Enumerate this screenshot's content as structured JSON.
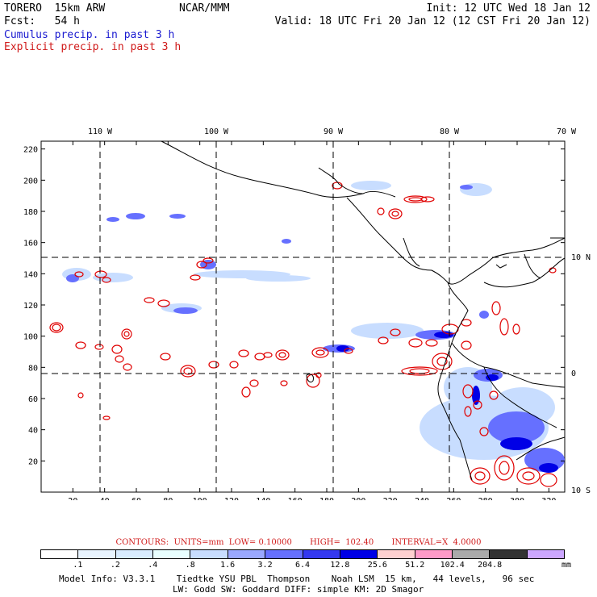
{
  "header": {
    "model": "TORERO  15km ARW",
    "org": "NCAR/MMM",
    "init": "Init: 12 UTC Wed 18 Jan 12",
    "fcst": "Fcst:   54 h",
    "valid": "Valid: 18 UTC Fri 20 Jan 12 (12 CST Fri 20 Jan 12)",
    "legend_cumulus": "Cumulus precip. in past 3 h",
    "legend_explicit": "Explicit precip. in past 3 h"
  },
  "map": {
    "lon_labels": [
      "110 W",
      "100 W",
      "90 W",
      "80 W",
      "70 W"
    ],
    "lat_labels": [
      "10 N",
      "0",
      "10 S"
    ],
    "x_ticks": [
      "20",
      "40",
      "60",
      "80",
      "100",
      "120",
      "140",
      "160",
      "180",
      "200",
      "220",
      "240",
      "260",
      "280",
      "300",
      "320"
    ],
    "y_ticks": [
      "20",
      "40",
      "60",
      "80",
      "100",
      "120",
      "140",
      "160",
      "180",
      "200",
      "220"
    ],
    "x_range": [
      0,
      330
    ],
    "y_range": [
      0,
      225
    ],
    "cumulus_color": "#1a1ad0",
    "explicit_color": "#e00000"
  },
  "contours_text": "CONTOURS:  UNITS=mm  LOW= 0.10000       HIGH=  102.40       INTERVAL=X  4.0000",
  "colorbar": {
    "colors": [
      "#ffffff",
      "#e8f4ff",
      "#d8ecff",
      "#e8ffff",
      "#c8ddff",
      "#9aa8ff",
      "#6670ff",
      "#3438f0",
      "#0000e6",
      "#ffd0d0",
      "#ff9ac8",
      "#aaaaaa",
      "#333333",
      "#cca6ff"
    ],
    "labels": [
      ".1",
      ".2",
      ".4",
      ".8",
      "1.6",
      "3.2",
      "6.4",
      "12.8",
      "25.6",
      "51.2",
      "102.4",
      "204.8"
    ],
    "unit": "mm"
  },
  "footer": {
    "line1": "Model Info: V3.3.1    Tiedtke YSU PBL  Thompson    Noah LSM  15 km,   44 levels,   96 sec",
    "line2": "LW: Godd SW: Goddard DIFF: simple KM: 2D Smagor"
  }
}
